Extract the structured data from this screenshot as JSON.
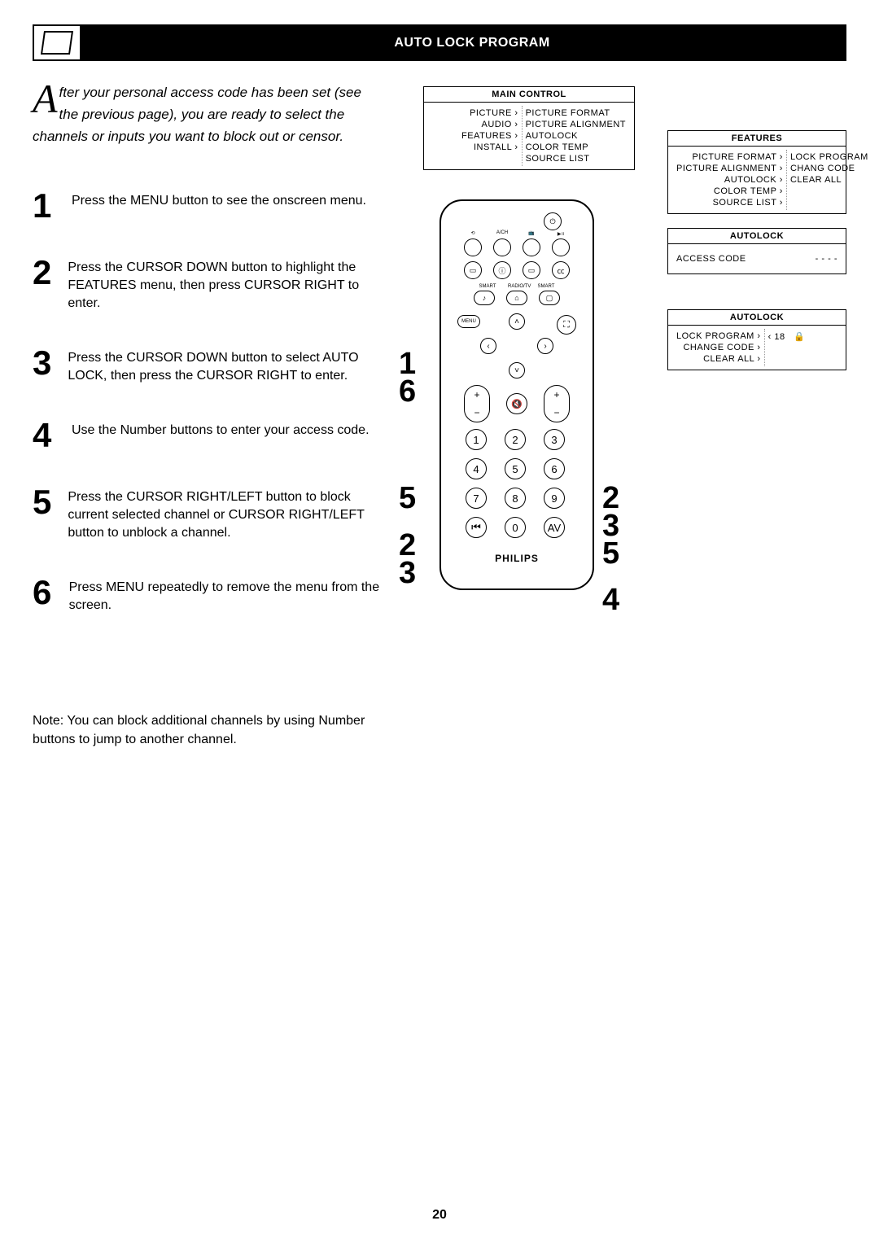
{
  "header": {
    "title": "AUTO LOCK PROGRAM"
  },
  "intro": {
    "dropcap": "A",
    "text": "fter your personal access code has been set (see the previous page), you are ready to select the channels or inputs you want to block out or censor."
  },
  "steps": [
    {
      "n": "1",
      "t": "Press the MENU button to see the onscreen menu."
    },
    {
      "n": "2",
      "t": "Press the CURSOR DOWN button to highlight the FEATURES menu, then press CURSOR RIGHT to enter."
    },
    {
      "n": "3",
      "t": "Press the CURSOR DOWN button to select AUTO LOCK, then press the CURSOR RIGHT to enter."
    },
    {
      "n": "4",
      "t": "Use the Number buttons to enter your access code."
    },
    {
      "n": "5",
      "t": "Press the CURSOR RIGHT/LEFT button to block current selected channel or CURSOR RIGHT/LEFT button to unblock a channel."
    },
    {
      "n": "6",
      "t": "Press MENU repeatedly to remove the menu from the screen."
    }
  ],
  "note": "Note: You can block additional channels by using Number buttons to jump to another channel.",
  "page": "20",
  "osd": {
    "main": {
      "title": "MAIN CONTROL",
      "left": [
        "PICTURE ›",
        "AUDIO ›",
        "FEATURES",
        "INSTALL ›"
      ],
      "left_hl_index": 2,
      "right": [
        "PICTURE FORMAT",
        "PICTURE ALIGNMENT",
        "AUTOLOCK",
        "COLOR TEMP",
        "SOURCE LIST"
      ]
    },
    "features": {
      "title": "FEATURES",
      "left": [
        "PICTURE FORMAT ›",
        "PICTURE ALIGNMENT ›",
        "AUTOLOCK",
        "COLOR TEMP ›",
        "SOURCE LIST ›"
      ],
      "left_hl_index": 2,
      "right": [
        "LOCK PROGRAM",
        "CHANG CODE",
        "CLEAR ALL"
      ]
    },
    "accesscode": {
      "title": "AUTOLOCK",
      "label": "ACCESS CODE",
      "value": "- - - -"
    },
    "lockprogram": {
      "title": "AUTOLOCK",
      "left": [
        "LOCK PROGRAM",
        "CHANGE CODE ›",
        "CLEAR ALL ›"
      ],
      "left_hl_index": 0,
      "right_value": "18",
      "right_icon": "🔒"
    }
  },
  "remote": {
    "top_labels": [
      "",
      "A/CH",
      "",
      ""
    ],
    "row2_labels": [
      "SMART",
      "RADIO/TV",
      "SMART"
    ],
    "menu": "MENU",
    "numbers": [
      "1",
      "2",
      "3",
      "4",
      "5",
      "6",
      "7",
      "8",
      "9",
      "⏮",
      "0",
      "AV"
    ],
    "brand": "PHILIPS"
  },
  "callouts": {
    "c16": "1\n6",
    "c5": "5",
    "c23l": "2\n3",
    "c235": "2\n3\n5",
    "c4": "4"
  }
}
